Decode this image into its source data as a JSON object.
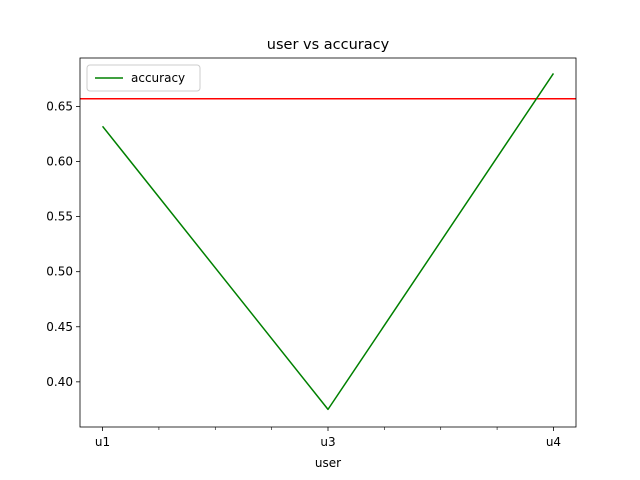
{
  "chart_data": {
    "type": "line",
    "title": "user vs accuracy",
    "xlabel": "user",
    "ylabel": "",
    "x_tick_labels": [
      "u1",
      "u3",
      "u4"
    ],
    "x_positions": [
      0,
      2,
      4
    ],
    "x_minor_ticks": [
      0.5,
      1,
      1.5,
      2.5,
      3,
      3.5
    ],
    "xlim": [
      -0.2,
      4.2
    ],
    "ylim": [
      0.359,
      0.694
    ],
    "y_ticks": [
      0.4,
      0.45,
      0.5,
      0.55,
      0.6,
      0.65
    ],
    "y_tick_labels": [
      "0.40",
      "0.45",
      "0.50",
      "0.55",
      "0.60",
      "0.65"
    ],
    "series": [
      {
        "name": "accuracy",
        "color": "#008000",
        "points": [
          {
            "x": 0,
            "y": 0.632
          },
          {
            "x": 2,
            "y": 0.375
          },
          {
            "x": 4,
            "y": 0.68
          }
        ]
      }
    ],
    "hline": {
      "y": 0.657,
      "color": "#ff0000"
    },
    "legend": {
      "position": "top-left"
    },
    "grid": false
  }
}
